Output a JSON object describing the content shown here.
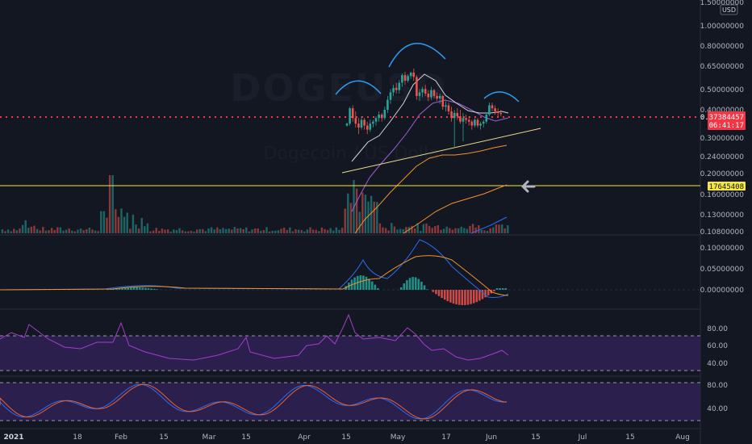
{
  "colors": {
    "background": "#131722",
    "bullish": "#26a69a",
    "bearish": "#ef5350",
    "price_line": "#f23645",
    "horizontal_line": "#f5e642",
    "trendline": "#e8dc8a",
    "pattern_arc": "#2a9df4",
    "ma_fast": "#d1d4dc",
    "ma_mid": "#9c5fd6",
    "ma_orange": "#f0922b",
    "ma_slow": "#2a6cf4",
    "rsi": "#a63ccc",
    "stoch_k": "#2a6cf4",
    "stoch_d": "#f0622b",
    "band_fill": "#2a1f4d"
  },
  "watermark": {
    "title": "DOGEUSD",
    "subtitle": "Dogecoin / US Dollar"
  },
  "price_axis": {
    "currency": "USD",
    "labels": [
      "1.50000000",
      "1.00000000",
      "0.80000000",
      "0.65000000",
      "0.50000000",
      "0.40000000",
      "0.30000000",
      "0.24000000",
      "0.20000000",
      "0.16000000",
      "0.13000000",
      "0.10800000"
    ],
    "current_price": "0.37384457",
    "countdown": "06:41:17",
    "horizontal_level": "0.17645408"
  },
  "macd_axis": {
    "labels": [
      "0.10000000",
      "0.05000000",
      "0.00000000"
    ]
  },
  "rsi_axis": {
    "labels": [
      "80.00",
      "60.00",
      "40.00"
    ],
    "band": [
      30,
      70
    ]
  },
  "stoch_axis": {
    "labels": [
      "80.00",
      "40.00"
    ],
    "band": [
      20,
      80
    ]
  },
  "time_axis": {
    "labels": [
      "2021",
      "18",
      "Feb",
      "15",
      "Mar",
      "15",
      "Apr",
      "15",
      "May",
      "17",
      "Jun",
      "15",
      "Jul",
      "15",
      "Aug"
    ]
  },
  "chart_data": {
    "type": "candlestick",
    "symbol": "DOGEUSD",
    "y_scale": "log",
    "last_price": 0.37384457,
    "horizontal_level": 0.17645408,
    "annotations": [
      "head-and-shoulders pattern arcs",
      "neckline trendline",
      "left arrow at horizontal level"
    ],
    "candles_ohlc": [
      [
        0.31,
        0.325,
        0.305,
        0.32
      ],
      [
        0.32,
        0.42,
        0.31,
        0.41
      ],
      [
        0.41,
        0.43,
        0.33,
        0.35
      ],
      [
        0.35,
        0.39,
        0.3,
        0.32
      ],
      [
        0.32,
        0.35,
        0.27,
        0.3
      ],
      [
        0.3,
        0.36,
        0.29,
        0.34
      ],
      [
        0.34,
        0.35,
        0.29,
        0.31
      ],
      [
        0.31,
        0.33,
        0.27,
        0.29
      ],
      [
        0.29,
        0.34,
        0.28,
        0.32
      ],
      [
        0.32,
        0.34,
        0.3,
        0.33
      ],
      [
        0.33,
        0.36,
        0.31,
        0.35
      ],
      [
        0.35,
        0.39,
        0.33,
        0.37
      ],
      [
        0.37,
        0.38,
        0.33,
        0.35
      ],
      [
        0.35,
        0.42,
        0.34,
        0.4
      ],
      [
        0.4,
        0.5,
        0.38,
        0.47
      ],
      [
        0.47,
        0.56,
        0.44,
        0.53
      ],
      [
        0.53,
        0.6,
        0.5,
        0.57
      ],
      [
        0.57,
        0.62,
        0.52,
        0.55
      ],
      [
        0.55,
        0.65,
        0.52,
        0.62
      ],
      [
        0.62,
        0.72,
        0.58,
        0.7
      ],
      [
        0.7,
        0.74,
        0.6,
        0.64
      ],
      [
        0.64,
        0.71,
        0.62,
        0.69
      ],
      [
        0.69,
        0.74,
        0.66,
        0.73
      ],
      [
        0.73,
        0.78,
        0.64,
        0.68
      ],
      [
        0.68,
        0.7,
        0.47,
        0.5
      ],
      [
        0.5,
        0.56,
        0.46,
        0.53
      ],
      [
        0.53,
        0.58,
        0.49,
        0.56
      ],
      [
        0.56,
        0.6,
        0.5,
        0.52
      ],
      [
        0.52,
        0.55,
        0.46,
        0.49
      ],
      [
        0.49,
        0.58,
        0.47,
        0.55
      ],
      [
        0.55,
        0.56,
        0.48,
        0.5
      ],
      [
        0.5,
        0.53,
        0.46,
        0.48
      ],
      [
        0.48,
        0.52,
        0.44,
        0.5
      ],
      [
        0.5,
        0.51,
        0.4,
        0.42
      ],
      [
        0.42,
        0.46,
        0.39,
        0.43
      ],
      [
        0.43,
        0.45,
        0.37,
        0.39
      ],
      [
        0.39,
        0.42,
        0.33,
        0.35
      ],
      [
        0.35,
        0.4,
        0.22,
        0.38
      ],
      [
        0.38,
        0.41,
        0.34,
        0.36
      ],
      [
        0.36,
        0.4,
        0.32,
        0.33
      ],
      [
        0.33,
        0.38,
        0.24,
        0.35
      ],
      [
        0.35,
        0.37,
        0.32,
        0.34
      ],
      [
        0.34,
        0.36,
        0.31,
        0.33
      ],
      [
        0.33,
        0.34,
        0.29,
        0.31
      ],
      [
        0.31,
        0.35,
        0.3,
        0.34
      ],
      [
        0.34,
        0.35,
        0.3,
        0.31
      ],
      [
        0.31,
        0.33,
        0.29,
        0.32
      ],
      [
        0.32,
        0.34,
        0.3,
        0.33
      ],
      [
        0.33,
        0.38,
        0.32,
        0.37
      ],
      [
        0.37,
        0.45,
        0.36,
        0.43
      ],
      [
        0.43,
        0.45,
        0.39,
        0.41
      ],
      [
        0.41,
        0.43,
        0.37,
        0.39
      ],
      [
        0.39,
        0.41,
        0.36,
        0.38
      ],
      [
        0.38,
        0.4,
        0.36,
        0.374
      ]
    ]
  }
}
